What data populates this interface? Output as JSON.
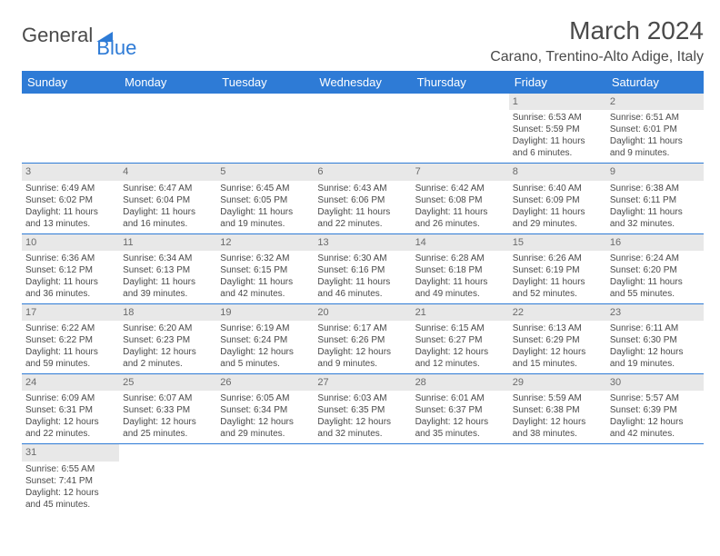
{
  "logo": {
    "text1": "General",
    "text2": "Blue"
  },
  "title": "March 2024",
  "location": "Carano, Trentino-Alto Adige, Italy",
  "colors": {
    "header_bg": "#2e7bd6",
    "header_fg": "#ffffff",
    "daynum_bg": "#e8e8e8",
    "text": "#4a4a4a",
    "row_border": "#2e7bd6",
    "page_bg": "#ffffff"
  },
  "font": {
    "family": "Arial",
    "title_size": 28,
    "location_size": 16,
    "weekday_size": 13,
    "body_size": 10
  },
  "weekdays": [
    "Sunday",
    "Monday",
    "Tuesday",
    "Wednesday",
    "Thursday",
    "Friday",
    "Saturday"
  ],
  "weeks": [
    [
      {
        "day": "",
        "lines": []
      },
      {
        "day": "",
        "lines": []
      },
      {
        "day": "",
        "lines": []
      },
      {
        "day": "",
        "lines": []
      },
      {
        "day": "",
        "lines": []
      },
      {
        "day": "1",
        "lines": [
          "Sunrise: 6:53 AM",
          "Sunset: 5:59 PM",
          "Daylight: 11 hours and 6 minutes."
        ]
      },
      {
        "day": "2",
        "lines": [
          "Sunrise: 6:51 AM",
          "Sunset: 6:01 PM",
          "Daylight: 11 hours and 9 minutes."
        ]
      }
    ],
    [
      {
        "day": "3",
        "lines": [
          "Sunrise: 6:49 AM",
          "Sunset: 6:02 PM",
          "Daylight: 11 hours and 13 minutes."
        ]
      },
      {
        "day": "4",
        "lines": [
          "Sunrise: 6:47 AM",
          "Sunset: 6:04 PM",
          "Daylight: 11 hours and 16 minutes."
        ]
      },
      {
        "day": "5",
        "lines": [
          "Sunrise: 6:45 AM",
          "Sunset: 6:05 PM",
          "Daylight: 11 hours and 19 minutes."
        ]
      },
      {
        "day": "6",
        "lines": [
          "Sunrise: 6:43 AM",
          "Sunset: 6:06 PM",
          "Daylight: 11 hours and 22 minutes."
        ]
      },
      {
        "day": "7",
        "lines": [
          "Sunrise: 6:42 AM",
          "Sunset: 6:08 PM",
          "Daylight: 11 hours and 26 minutes."
        ]
      },
      {
        "day": "8",
        "lines": [
          "Sunrise: 6:40 AM",
          "Sunset: 6:09 PM",
          "Daylight: 11 hours and 29 minutes."
        ]
      },
      {
        "day": "9",
        "lines": [
          "Sunrise: 6:38 AM",
          "Sunset: 6:11 PM",
          "Daylight: 11 hours and 32 minutes."
        ]
      }
    ],
    [
      {
        "day": "10",
        "lines": [
          "Sunrise: 6:36 AM",
          "Sunset: 6:12 PM",
          "Daylight: 11 hours and 36 minutes."
        ]
      },
      {
        "day": "11",
        "lines": [
          "Sunrise: 6:34 AM",
          "Sunset: 6:13 PM",
          "Daylight: 11 hours and 39 minutes."
        ]
      },
      {
        "day": "12",
        "lines": [
          "Sunrise: 6:32 AM",
          "Sunset: 6:15 PM",
          "Daylight: 11 hours and 42 minutes."
        ]
      },
      {
        "day": "13",
        "lines": [
          "Sunrise: 6:30 AM",
          "Sunset: 6:16 PM",
          "Daylight: 11 hours and 46 minutes."
        ]
      },
      {
        "day": "14",
        "lines": [
          "Sunrise: 6:28 AM",
          "Sunset: 6:18 PM",
          "Daylight: 11 hours and 49 minutes."
        ]
      },
      {
        "day": "15",
        "lines": [
          "Sunrise: 6:26 AM",
          "Sunset: 6:19 PM",
          "Daylight: 11 hours and 52 minutes."
        ]
      },
      {
        "day": "16",
        "lines": [
          "Sunrise: 6:24 AM",
          "Sunset: 6:20 PM",
          "Daylight: 11 hours and 55 minutes."
        ]
      }
    ],
    [
      {
        "day": "17",
        "lines": [
          "Sunrise: 6:22 AM",
          "Sunset: 6:22 PM",
          "Daylight: 11 hours and 59 minutes."
        ]
      },
      {
        "day": "18",
        "lines": [
          "Sunrise: 6:20 AM",
          "Sunset: 6:23 PM",
          "Daylight: 12 hours and 2 minutes."
        ]
      },
      {
        "day": "19",
        "lines": [
          "Sunrise: 6:19 AM",
          "Sunset: 6:24 PM",
          "Daylight: 12 hours and 5 minutes."
        ]
      },
      {
        "day": "20",
        "lines": [
          "Sunrise: 6:17 AM",
          "Sunset: 6:26 PM",
          "Daylight: 12 hours and 9 minutes."
        ]
      },
      {
        "day": "21",
        "lines": [
          "Sunrise: 6:15 AM",
          "Sunset: 6:27 PM",
          "Daylight: 12 hours and 12 minutes."
        ]
      },
      {
        "day": "22",
        "lines": [
          "Sunrise: 6:13 AM",
          "Sunset: 6:29 PM",
          "Daylight: 12 hours and 15 minutes."
        ]
      },
      {
        "day": "23",
        "lines": [
          "Sunrise: 6:11 AM",
          "Sunset: 6:30 PM",
          "Daylight: 12 hours and 19 minutes."
        ]
      }
    ],
    [
      {
        "day": "24",
        "lines": [
          "Sunrise: 6:09 AM",
          "Sunset: 6:31 PM",
          "Daylight: 12 hours and 22 minutes."
        ]
      },
      {
        "day": "25",
        "lines": [
          "Sunrise: 6:07 AM",
          "Sunset: 6:33 PM",
          "Daylight: 12 hours and 25 minutes."
        ]
      },
      {
        "day": "26",
        "lines": [
          "Sunrise: 6:05 AM",
          "Sunset: 6:34 PM",
          "Daylight: 12 hours and 29 minutes."
        ]
      },
      {
        "day": "27",
        "lines": [
          "Sunrise: 6:03 AM",
          "Sunset: 6:35 PM",
          "Daylight: 12 hours and 32 minutes."
        ]
      },
      {
        "day": "28",
        "lines": [
          "Sunrise: 6:01 AM",
          "Sunset: 6:37 PM",
          "Daylight: 12 hours and 35 minutes."
        ]
      },
      {
        "day": "29",
        "lines": [
          "Sunrise: 5:59 AM",
          "Sunset: 6:38 PM",
          "Daylight: 12 hours and 38 minutes."
        ]
      },
      {
        "day": "30",
        "lines": [
          "Sunrise: 5:57 AM",
          "Sunset: 6:39 PM",
          "Daylight: 12 hours and 42 minutes."
        ]
      }
    ],
    [
      {
        "day": "31",
        "lines": [
          "Sunrise: 6:55 AM",
          "Sunset: 7:41 PM",
          "Daylight: 12 hours and 45 minutes."
        ]
      },
      {
        "day": "",
        "lines": []
      },
      {
        "day": "",
        "lines": []
      },
      {
        "day": "",
        "lines": []
      },
      {
        "day": "",
        "lines": []
      },
      {
        "day": "",
        "lines": []
      },
      {
        "day": "",
        "lines": []
      }
    ]
  ]
}
